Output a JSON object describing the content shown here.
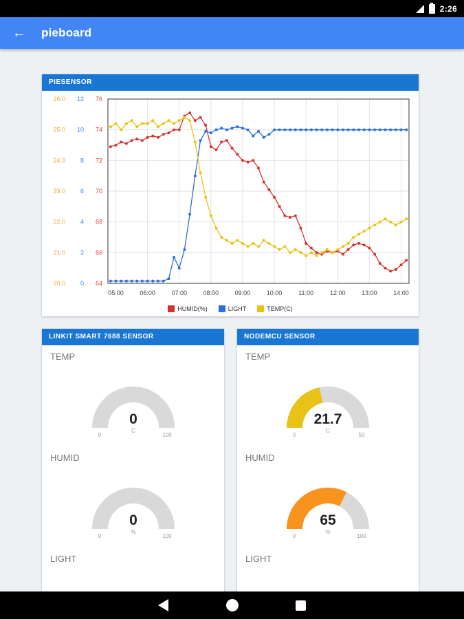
{
  "status_bar": {
    "time": "2:26"
  },
  "app_bar": {
    "title": "pieboard",
    "back_icon": "←"
  },
  "cards": {
    "piesensor": {
      "title": "PIESENSOR"
    },
    "linkit": {
      "title": "LINKIT SMART 7688 SENSOR",
      "sections": [
        {
          "label": "TEMP",
          "gauge": {
            "value": "0",
            "unit": "C",
            "min": "0",
            "max": "100",
            "fraction": 0.0,
            "color": "#e9c217"
          }
        },
        {
          "label": "HUMID",
          "gauge": {
            "value": "0",
            "unit": "%",
            "min": "0",
            "max": "100",
            "fraction": 0.0,
            "color": "#f8941d"
          }
        },
        {
          "label": "LIGHT"
        }
      ]
    },
    "nodemcu": {
      "title": "NODEMCU SENSOR",
      "sections": [
        {
          "label": "TEMP",
          "gauge": {
            "value": "21.7",
            "unit": "C",
            "min": "0",
            "max": "50",
            "fraction": 0.434,
            "color": "#e9c217"
          }
        },
        {
          "label": "HUMID",
          "gauge": {
            "value": "65",
            "unit": "%",
            "min": "0",
            "max": "100",
            "fraction": 0.65,
            "color": "#f8941d"
          }
        },
        {
          "label": "LIGHT"
        }
      ]
    }
  },
  "chart_data": {
    "type": "line",
    "title": "PIESENSOR",
    "grid": true,
    "legend_position": "bottom",
    "x_range": [
      4.75,
      14.25
    ],
    "x_tick_hours": [
      5,
      6,
      7,
      8,
      9,
      10,
      11,
      12,
      13,
      14
    ],
    "x_tick_labels": [
      "05:00",
      "06:00",
      "07:00",
      "08:00",
      "09:00",
      "10:00",
      "11:00",
      "12:00",
      "13:00",
      "14:00"
    ],
    "axes": [
      {
        "name": "temp",
        "color": "#f5a637",
        "range": [
          20,
          26
        ],
        "ticks": [
          "26.0",
          "25.0",
          "24.0",
          "23.0",
          "22.0",
          "21.0",
          "20.0"
        ]
      },
      {
        "name": "light",
        "color": "#4285f4",
        "range": [
          0,
          12
        ],
        "ticks": [
          "12",
          "10",
          "8",
          "6",
          "4",
          "2",
          "0"
        ]
      },
      {
        "name": "humid",
        "color": "#e5433f",
        "range": [
          64,
          76
        ],
        "ticks": [
          "76",
          "74",
          "72",
          "70",
          "68",
          "66",
          "64"
        ]
      }
    ],
    "series": [
      {
        "name": "HUMID(%)",
        "color": "#d5332e",
        "axis": "humid",
        "x_start": 4.8333,
        "x_step": 0.16667,
        "values": [
          72.9,
          73.0,
          73.2,
          73.1,
          73.3,
          73.4,
          73.3,
          73.5,
          73.6,
          73.5,
          73.7,
          73.8,
          74.0,
          74.0,
          74.9,
          75.1,
          74.6,
          74.8,
          74.3,
          72.9,
          72.7,
          73.2,
          73.3,
          72.8,
          72.4,
          72.0,
          71.9,
          72.0,
          71.5,
          70.6,
          70.1,
          69.6,
          69.0,
          68.4,
          68.3,
          68.4,
          67.6,
          66.6,
          66.3,
          66.0,
          65.9,
          66.1,
          66.0,
          66.1,
          65.9,
          66.2,
          66.5,
          66.6,
          66.5,
          66.3,
          65.9,
          65.3,
          65.0,
          64.8,
          64.9,
          65.2,
          65.5
        ]
      },
      {
        "name": "LIGHT",
        "color": "#2a6fdb",
        "axis": "light",
        "x_start": 4.8333,
        "x_step": 0.16667,
        "values": [
          0.15,
          0.15,
          0.15,
          0.15,
          0.15,
          0.15,
          0.15,
          0.15,
          0.15,
          0.15,
          0.15,
          0.3,
          1.7,
          1.0,
          2.2,
          4.5,
          7.0,
          9.3,
          9.9,
          9.8,
          10.0,
          10.1,
          10.0,
          10.1,
          10.2,
          10.1,
          10.0,
          9.6,
          9.9,
          9.5,
          9.7,
          10.0,
          10.0,
          10.0,
          10.0,
          10.0,
          10.0,
          10.0,
          10.0,
          10.0,
          10.0,
          10.0,
          10.0,
          10.0,
          10.0,
          10.0,
          10.0,
          10.0,
          10.0,
          10.0,
          10.0,
          10.0,
          10.0,
          10.0,
          10.0,
          10.0,
          10.0
        ]
      },
      {
        "name": "TEMP(C)",
        "color": "#ecc117",
        "axis": "temp",
        "x_start": 4.8333,
        "x_step": 0.16667,
        "values": [
          25.1,
          25.2,
          25.0,
          25.2,
          25.3,
          25.1,
          25.2,
          25.2,
          25.3,
          25.1,
          25.2,
          25.3,
          25.2,
          25.3,
          25.4,
          25.3,
          24.6,
          23.6,
          22.8,
          22.2,
          21.8,
          21.5,
          21.4,
          21.3,
          21.4,
          21.3,
          21.2,
          21.3,
          21.2,
          21.4,
          21.3,
          21.2,
          21.1,
          21.2,
          21.0,
          21.1,
          21.0,
          20.9,
          21.0,
          20.9,
          21.0,
          21.1,
          21.0,
          21.1,
          21.2,
          21.3,
          21.5,
          21.6,
          21.7,
          21.8,
          21.9,
          22.0,
          22.1,
          22.0,
          21.9,
          22.0,
          22.1
        ]
      }
    ]
  }
}
